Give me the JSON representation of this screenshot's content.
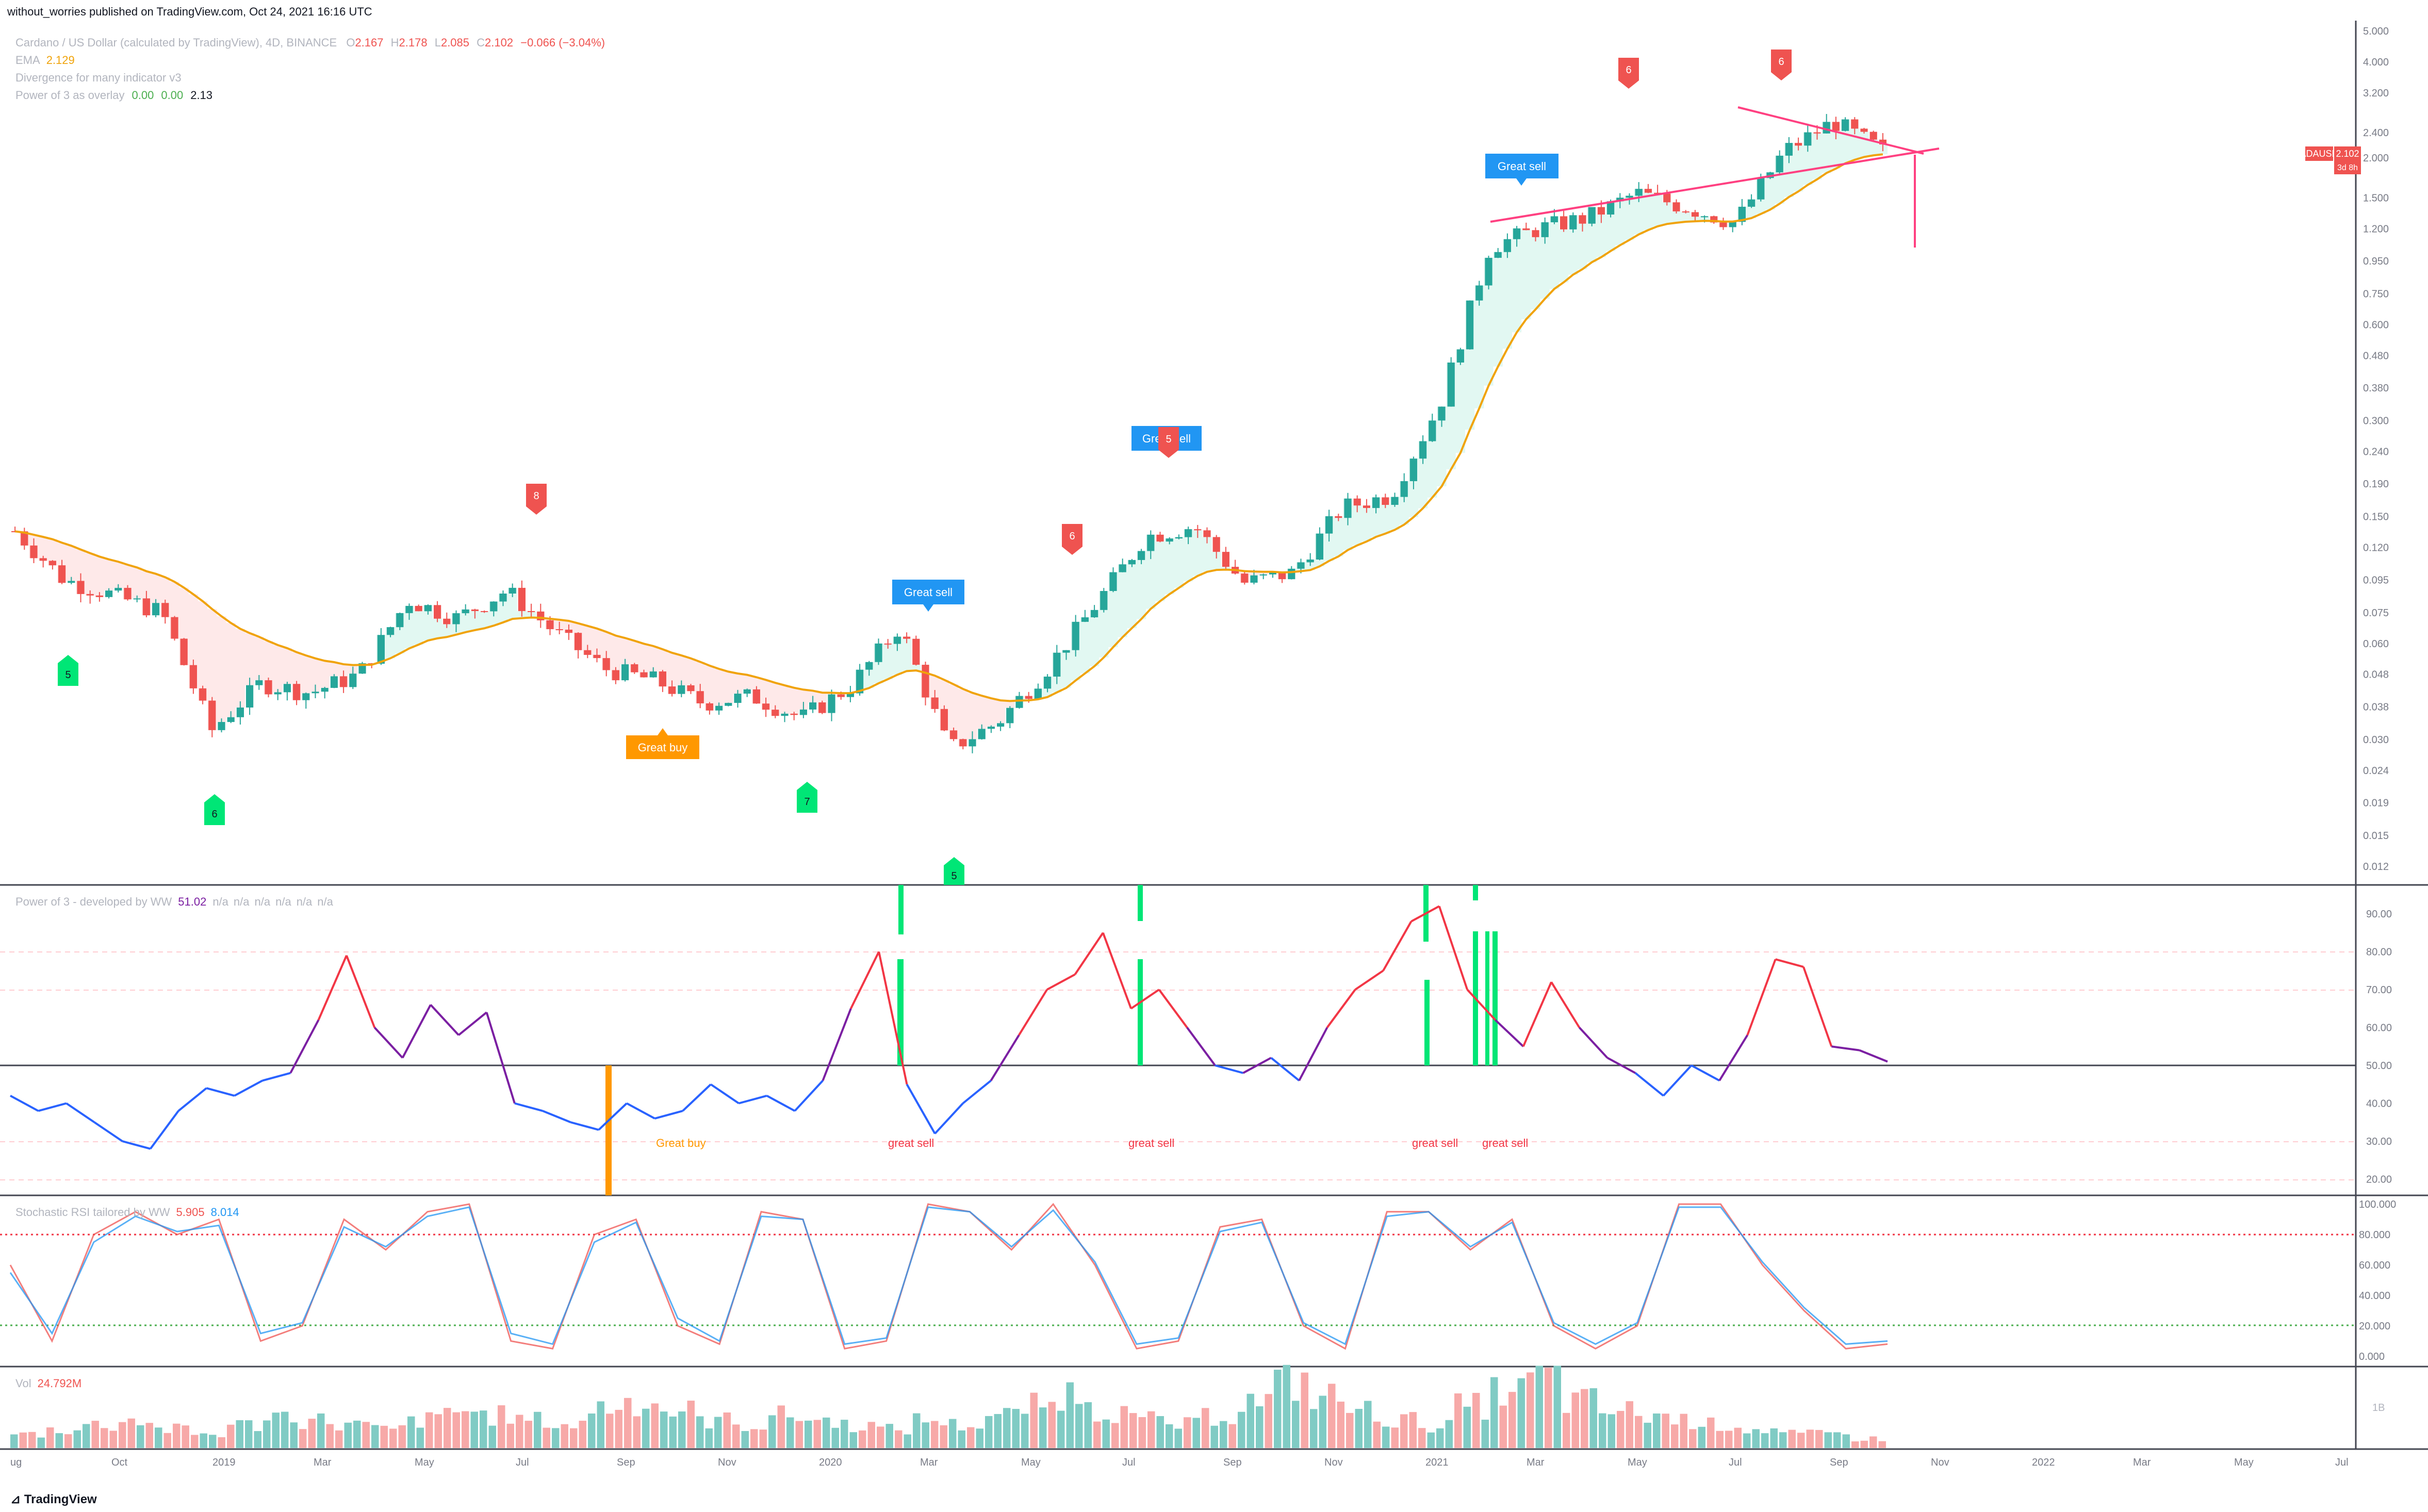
{
  "header": {
    "published": "without_worries published on TradingView.com, Oct 24, 2021 16:16 UTC"
  },
  "legend": {
    "symbol_title": "Cardano / US Dollar (calculated by TradingView), 4D, BINANCE",
    "ohlc": {
      "o_label": "O",
      "o": "2.167",
      "h_label": "H",
      "h": "2.178",
      "l_label": "L",
      "l": "2.085",
      "c_label": "C",
      "c": "2.102",
      "change": "−0.066 (−3.04%)"
    },
    "ema_label": "EMA",
    "ema_value": "2.129",
    "divergence_label": "Divergence for many indicator v3",
    "power_overlay_label": "Power of 3 as overlay",
    "power_overlay_values": [
      "0.00",
      "0.00",
      "2.13"
    ]
  },
  "price_tag": {
    "symbol": "ADAUSD",
    "price": "2.102",
    "countdown": "3d 8h"
  },
  "colors": {
    "up": "#26a69a",
    "down": "#ef5350",
    "ema": "#f0a30a",
    "cloud_up": "#d6f5ec",
    "cloud_down": "#fde0e0",
    "trendline": "#ff4081",
    "power_up": "#f23645",
    "power_down": "#2962ff",
    "power_mid": "#7b1fa2",
    "stoch_k": "#ef5350",
    "stoch_d": "#2196f3",
    "buy_bg": "#ff9800",
    "sell_bg": "#2196f3",
    "bar_green": "#00e676"
  },
  "panes": {
    "power": {
      "title": "Power of 3 - developed by WW",
      "value": "51.02",
      "nas": [
        "n/a",
        "n/a",
        "n/a",
        "n/a",
        "n/a",
        "n/a"
      ]
    },
    "stoch": {
      "title": "Stochastic RSI tailored by WW",
      "k": "5.905",
      "d": "8.014"
    },
    "vol": {
      "title": "Vol",
      "value": "24.792M"
    }
  },
  "annotations": {
    "great_buy": "Great buy",
    "great_sell": "Great sell",
    "great_sell_lower": "great sell",
    "counts": [
      "5",
      "6",
      "7",
      "5",
      "8",
      "6",
      "5",
      "6",
      "6"
    ]
  },
  "footer": {
    "brand": "TradingView"
  },
  "chart_data": [
    {
      "type": "candlestick",
      "title": "Cardano / US Dollar (calculated by TradingView), 4D, BINANCE",
      "scale": "log",
      "price_axis_ticks": [
        "5.000",
        "4.000",
        "3.200",
        "2.400",
        "2.000",
        "1.500",
        "1.200",
        "0.950",
        "0.750",
        "0.600",
        "0.480",
        "0.380",
        "0.300",
        "0.240",
        "0.190",
        "0.150",
        "0.120",
        "0.095",
        "0.075",
        "0.060",
        "0.048",
        "0.038",
        "0.030",
        "0.024",
        "0.019",
        "0.015",
        "0.012"
      ],
      "x_axis_ticks": [
        "ug",
        "Oct",
        "2019",
        "Mar",
        "May",
        "Jul",
        "Sep",
        "Nov",
        "2020",
        "Mar",
        "May",
        "Jul",
        "Sep",
        "Nov",
        "2021",
        "Mar",
        "May",
        "Jul",
        "Sep",
        "Nov",
        "2022",
        "Mar",
        "May",
        "Jul"
      ],
      "close_path": [
        {
          "t": "2018-08",
          "v": 0.135
        },
        {
          "t": "2018-09",
          "v": 0.095
        },
        {
          "t": "2018-10",
          "v": 0.085
        },
        {
          "t": "2018-11",
          "v": 0.075
        },
        {
          "t": "2018-12",
          "v": 0.032
        },
        {
          "t": "2019-01",
          "v": 0.045
        },
        {
          "t": "2019-02",
          "v": 0.042
        },
        {
          "t": "2019-03",
          "v": 0.048
        },
        {
          "t": "2019-04",
          "v": 0.082
        },
        {
          "t": "2019-05",
          "v": 0.072
        },
        {
          "t": "2019-06",
          "v": 0.088
        },
        {
          "t": "2019-07",
          "v": 0.065
        },
        {
          "t": "2019-08",
          "v": 0.05
        },
        {
          "t": "2019-09",
          "v": 0.046
        },
        {
          "t": "2019-10",
          "v": 0.039
        },
        {
          "t": "2019-11",
          "v": 0.041
        },
        {
          "t": "2019-12",
          "v": 0.035
        },
        {
          "t": "2020-01",
          "v": 0.044
        },
        {
          "t": "2020-02",
          "v": 0.068
        },
        {
          "t": "2020-03",
          "v": 0.028
        },
        {
          "t": "2020-04",
          "v": 0.034
        },
        {
          "t": "2020-05",
          "v": 0.05
        },
        {
          "t": "2020-06",
          "v": 0.08
        },
        {
          "t": "2020-07",
          "v": 0.13
        },
        {
          "t": "2020-08",
          "v": 0.14
        },
        {
          "t": "2020-09",
          "v": 0.093
        },
        {
          "t": "2020-10",
          "v": 0.1
        },
        {
          "t": "2020-11",
          "v": 0.16
        },
        {
          "t": "2020-12",
          "v": 0.175
        },
        {
          "t": "2021-01",
          "v": 0.34
        },
        {
          "t": "2021-02",
          "v": 1.05
        },
        {
          "t": "2021-03",
          "v": 1.2
        },
        {
          "t": "2021-04",
          "v": 1.3
        },
        {
          "t": "2021-05",
          "v": 1.55
        },
        {
          "t": "2021-06",
          "v": 1.4
        },
        {
          "t": "2021-07",
          "v": 1.25
        },
        {
          "t": "2021-08",
          "v": 2.1
        },
        {
          "t": "2021-09",
          "v": 2.6
        },
        {
          "t": "2021-10",
          "v": 2.102
        }
      ],
      "trendlines": "symmetrical triangle (two pink lines) converging near 2.1"
    },
    {
      "type": "line",
      "title": "Power of 3 - developed by WW",
      "y_ticks": [
        "90.00",
        "80.00",
        "70.00",
        "60.00",
        "50.00",
        "40.00",
        "30.00",
        "20.00"
      ],
      "midline": 50,
      "dashed_levels": [
        80,
        70,
        30,
        20
      ],
      "series": [
        {
          "name": "Power of 3",
          "values": [
            42,
            38,
            40,
            35,
            30,
            28,
            38,
            44,
            42,
            46,
            48,
            62,
            79,
            60,
            52,
            66,
            58,
            64,
            40,
            38,
            35,
            33,
            40,
            36,
            38,
            45,
            40,
            42,
            38,
            46,
            65,
            80,
            45,
            32,
            40,
            46,
            58,
            70,
            74,
            85,
            65,
            70,
            60,
            50,
            48,
            52,
            46,
            60,
            70,
            75,
            88,
            92,
            70,
            62,
            55,
            72,
            60,
            52,
            48,
            42,
            50,
            46,
            58,
            78,
            76,
            55,
            54,
            51
          ]
        }
      ]
    },
    {
      "type": "line",
      "title": "Stochastic RSI tailored by WW",
      "y_ticks": [
        "100.000",
        "80.000",
        "60.000",
        "40.000",
        "20.000",
        "0.000"
      ],
      "dashed_levels": [
        80,
        20
      ],
      "series": [
        {
          "name": "K",
          "values": [
            60,
            10,
            80,
            95,
            80,
            90,
            10,
            20,
            90,
            70,
            95,
            100,
            10,
            5,
            80,
            90,
            20,
            8,
            95,
            90,
            5,
            10,
            100,
            95,
            70,
            100,
            60,
            5,
            10,
            85,
            90,
            20,
            5,
            95,
            95,
            70,
            90,
            20,
            5,
            20,
            100,
            100,
            60,
            30,
            5,
            8
          ]
        },
        {
          "name": "D",
          "values": [
            55,
            15,
            75,
            92,
            82,
            86,
            15,
            22,
            85,
            72,
            92,
            98,
            15,
            8,
            75,
            88,
            25,
            10,
            92,
            90,
            8,
            12,
            98,
            95,
            72,
            96,
            62,
            8,
            12,
            82,
            88,
            22,
            8,
            92,
            95,
            72,
            88,
            22,
            8,
            22,
            98,
            98,
            62,
            32,
            8,
            10
          ]
        }
      ]
    },
    {
      "type": "bar",
      "title": "Vol",
      "y_ticks": [
        "1B"
      ],
      "series": [
        {
          "name": "Vol",
          "values": [
            3,
            4,
            5,
            6,
            4,
            3,
            5,
            7,
            6,
            5,
            4,
            6,
            8,
            7,
            6,
            5,
            9,
            10,
            8,
            6,
            5,
            7,
            6,
            5,
            4,
            6,
            5,
            7,
            9,
            12,
            8,
            6,
            5,
            7,
            10,
            14,
            11,
            8,
            6,
            5,
            9,
            12,
            15,
            10,
            8,
            7,
            6,
            5,
            4,
            3,
            3,
            2
          ]
        }
      ]
    }
  ]
}
